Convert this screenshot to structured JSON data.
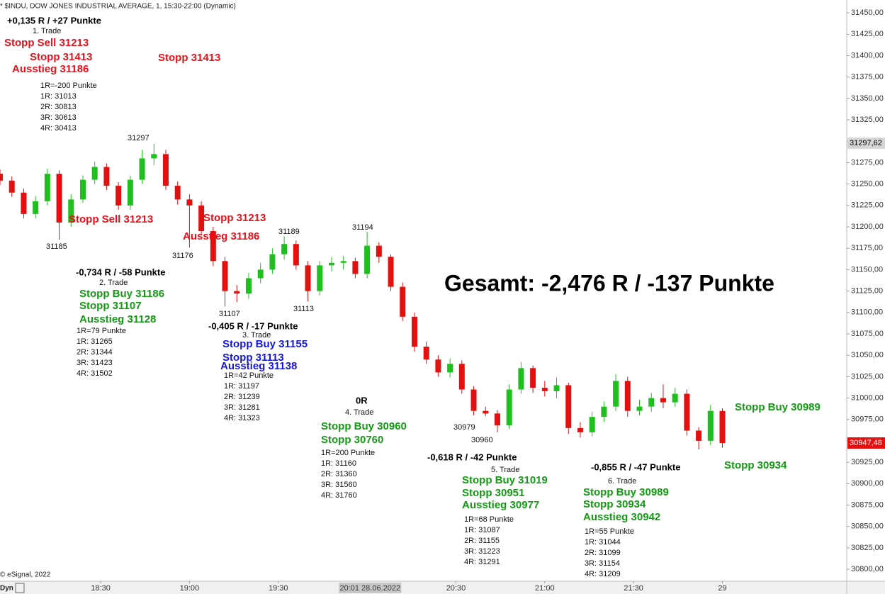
{
  "chart_data": {
    "type": "candlestick",
    "title": "* $INDU, DOW JONES INDUSTRIAL AVERAGE, 1, 15:30-22:00 (Dynamic)",
    "x": [
      1076,
      1080,
      1084,
      1088,
      1092,
      1096,
      1100,
      1104,
      1108,
      1112,
      1116,
      1120,
      1124,
      1128,
      1132,
      1136,
      1140,
      1144,
      1148,
      1152,
      1156,
      1160,
      1164,
      1168,
      1172,
      1176,
      1180,
      1184,
      1188,
      1192,
      1196,
      1200,
      1204,
      1208,
      1212,
      1216,
      1220,
      1224,
      1228,
      1232,
      1236,
      1240,
      1244,
      1248,
      1252,
      1256,
      1260,
      1264,
      1268,
      1272,
      1276,
      1280,
      1284,
      1288,
      1292,
      1296,
      1300,
      1304,
      1308,
      1312,
      1316,
      1320
    ],
    "open": [
      31262,
      31254,
      31240,
      31215,
      31230,
      31262,
      31205,
      31232,
      31255,
      31270,
      31248,
      31225,
      31255,
      31280,
      31285,
      31248,
      31232,
      31225,
      31195,
      31160,
      31125,
      31122,
      31140,
      31150,
      31168,
      31180,
      31155,
      31125,
      31155,
      31158,
      31160,
      31145,
      31178,
      31165,
      31130,
      31095,
      31060,
      31045,
      31030,
      31040,
      31010,
      30985,
      30982,
      30968,
      31010,
      31035,
      31012,
      31008,
      31015,
      30965,
      30960,
      30978,
      30990,
      31020,
      30985,
      30990,
      31000,
      30995,
      31005,
      30962,
      30950,
      30985
    ],
    "high": [
      31267,
      31259,
      31245,
      31236,
      31268,
      31266,
      31238,
      31260,
      31276,
      31274,
      31252,
      31260,
      31290,
      31297,
      31290,
      31253,
      31238,
      31230,
      31200,
      31165,
      31132,
      31146,
      31158,
      31175,
      31189,
      31184,
      31160,
      31160,
      31165,
      31166,
      31164,
      31194,
      31182,
      31168,
      31135,
      31100,
      31066,
      31050,
      31046,
      31044,
      31014,
      30990,
      30986,
      31016,
      31042,
      31038,
      31020,
      31024,
      31018,
      30972,
      30984,
      30996,
      31028,
      31025,
      30998,
      31006,
      31016,
      31012,
      31010,
      30966,
      30992,
      30988
    ],
    "low": [
      31249,
      31235,
      31210,
      31210,
      31225,
      31185,
      31200,
      31228,
      31250,
      31243,
      31220,
      31220,
      31250,
      31272,
      31243,
      31226,
      31176,
      31190,
      31154,
      31107,
      31112,
      31116,
      31134,
      31145,
      31162,
      31150,
      31113,
      31120,
      31148,
      31150,
      31140,
      31140,
      31158,
      31125,
      31090,
      31054,
      31040,
      31025,
      31024,
      31005,
      30980,
      30979,
      30960,
      30964,
      31005,
      31006,
      31002,
      31000,
      30958,
      30954,
      30955,
      30972,
      30985,
      30978,
      30980,
      30984,
      30988,
      30990,
      30956,
      30940,
      30945,
      30942
    ],
    "close": [
      31254,
      31240,
      31215,
      31230,
      31262,
      31205,
      31232,
      31255,
      31270,
      31248,
      31225,
      31255,
      31280,
      31285,
      31248,
      31232,
      31225,
      31195,
      31160,
      31125,
      31122,
      31140,
      31150,
      31168,
      31180,
      31155,
      31125,
      31155,
      31158,
      31160,
      31145,
      31178,
      31165,
      31130,
      31095,
      31060,
      31045,
      31030,
      31040,
      31010,
      30985,
      30982,
      30968,
      31010,
      31035,
      31012,
      31008,
      31015,
      30965,
      30960,
      30978,
      30990,
      31020,
      30985,
      30990,
      31000,
      30995,
      31005,
      30962,
      30950,
      30985,
      30947.48
    ],
    "up_color": "#1fbf1f",
    "down_color": "#e3100f",
    "xlim": [
      1076,
      1362
    ],
    "xticks": [
      {
        "value": 1110,
        "label": "18:30"
      },
      {
        "value": 1140,
        "label": "19:00"
      },
      {
        "value": 1170,
        "label": "19:30"
      },
      {
        "value": 1201,
        "label": "20:01 28.06.2022",
        "highlight": true
      },
      {
        "value": 1230,
        "label": "20:30"
      },
      {
        "value": 1260,
        "label": "21:00"
      },
      {
        "value": 1290,
        "label": "21:30"
      },
      {
        "value": 1320,
        "label": "29"
      }
    ],
    "ylim": [
      30786,
      31465
    ],
    "yticks": [
      {
        "value": 30800,
        "label": "30800,00"
      },
      {
        "value": 30825,
        "label": "30825,00"
      },
      {
        "value": 30850,
        "label": "30850,00"
      },
      {
        "value": 30875,
        "label": "30875,00"
      },
      {
        "value": 30900,
        "label": "30900,00"
      },
      {
        "value": 30925,
        "label": "30925,00"
      },
      {
        "value": 30950,
        "label": "30950,00"
      },
      {
        "value": 30975,
        "label": "30975,00"
      },
      {
        "value": 31000,
        "label": "31000,00"
      },
      {
        "value": 31025,
        "label": "31025,00"
      },
      {
        "value": 31050,
        "label": "31050,00"
      },
      {
        "value": 31075,
        "label": "31075,00"
      },
      {
        "value": 31100,
        "label": "31100,00"
      },
      {
        "value": 31125,
        "label": "31125,00"
      },
      {
        "value": 31150,
        "label": "31150,00"
      },
      {
        "value": 31175,
        "label": "31175,00"
      },
      {
        "value": 31200,
        "label": "31200,00"
      },
      {
        "value": 31225,
        "label": "31225,00"
      },
      {
        "value": 31250,
        "label": "31250,00"
      },
      {
        "value": 31275,
        "label": "31275,00"
      },
      {
        "value": 31300,
        "label": "31300,00"
      },
      {
        "value": 31325,
        "label": "31325,00"
      },
      {
        "value": 31350,
        "label": "31350,00"
      },
      {
        "value": 31375,
        "label": "31375,00"
      },
      {
        "value": 31400,
        "label": "31400,00"
      },
      {
        "value": 31425,
        "label": "31425,00"
      },
      {
        "value": 31450,
        "label": "31450,00"
      }
    ],
    "price_markers": [
      {
        "value": 31297.62,
        "label": "31297,62",
        "color": "#d6d6d6",
        "text_color": "#000"
      },
      {
        "value": 30947.48,
        "label": "30947,48",
        "color": "#e3100f",
        "text_color": "#fff"
      }
    ],
    "annotations": [
      {
        "text": "+0,135 R / +27 Punkte",
        "color": "#000"
      },
      {
        "text": "1. Trade",
        "color": "#111"
      },
      {
        "text": "Stopp Sell 31213",
        "color": "#e8101b"
      },
      {
        "text": "Stopp 31413",
        "color": "#e8101b"
      },
      {
        "text": "Ausstieg 31186",
        "color": "#e8101b"
      },
      {
        "text": "1R=-200 Punkte",
        "color": "#111"
      },
      {
        "text": "1R: 31013",
        "color": "#111"
      },
      {
        "text": "2R: 30813",
        "color": "#111"
      },
      {
        "text": "3R: 30613",
        "color": "#111"
      },
      {
        "text": "4R: 30413",
        "color": "#111"
      },
      {
        "text": "Stopp 31413",
        "color": "#e8101b"
      },
      {
        "text": "31297",
        "color": "#111"
      },
      {
        "text": "31185",
        "color": "#111"
      },
      {
        "text": "31176",
        "color": "#111"
      },
      {
        "text": "31189",
        "color": "#111"
      },
      {
        "text": "31194",
        "color": "#111"
      },
      {
        "text": "31107",
        "color": "#111"
      },
      {
        "text": "31113",
        "color": "#111"
      },
      {
        "text": "30979",
        "color": "#111"
      },
      {
        "text": "30960",
        "color": "#111"
      },
      {
        "text": "Stopp Sell 31213",
        "color": "#e8101b"
      },
      {
        "text": "Stopp 31213",
        "color": "#e8101b"
      },
      {
        "text": "Ausstieg 31186",
        "color": "#e8101b"
      },
      {
        "text": "-0,734 R / -58 Punkte",
        "color": "#000"
      },
      {
        "text": "2. Trade",
        "color": "#111"
      },
      {
        "text": "Stopp Buy 31186",
        "color": "#139a13"
      },
      {
        "text": "Stopp 31107",
        "color": "#139a13"
      },
      {
        "text": "Ausstieg 31128",
        "color": "#139a13"
      },
      {
        "text": "1R=79 Punkte",
        "color": "#111"
      },
      {
        "text": "1R: 31265",
        "color": "#111"
      },
      {
        "text": "2R: 31344",
        "color": "#111"
      },
      {
        "text": "3R: 31423",
        "color": "#111"
      },
      {
        "text": "4R: 31502",
        "color": "#111"
      },
      {
        "text": "-0,405 R / -17 Punkte",
        "color": "#000"
      },
      {
        "text": "3. Trade",
        "color": "#111"
      },
      {
        "text": "Stopp Buy 31155",
        "color": "#1515e0"
      },
      {
        "text": "Stopp 31113",
        "color": "#1515e0"
      },
      {
        "text": "Ausstieg 31138",
        "color": "#1515e0"
      },
      {
        "text": "1R=42 Punkte",
        "color": "#111"
      },
      {
        "text": "1R: 31197",
        "color": "#111"
      },
      {
        "text": "2R: 31239",
        "color": "#111"
      },
      {
        "text": "3R: 31281",
        "color": "#111"
      },
      {
        "text": "4R: 31323",
        "color": "#111"
      },
      {
        "text": "0R",
        "color": "#000"
      },
      {
        "text": "4. Trade",
        "color": "#111"
      },
      {
        "text": "Stopp Buy 30960",
        "color": "#139a13"
      },
      {
        "text": "Stopp 30760",
        "color": "#139a13"
      },
      {
        "text": "1R=200 Punkte",
        "color": "#111"
      },
      {
        "text": "1R: 31160",
        "color": "#111"
      },
      {
        "text": "2R: 31360",
        "color": "#111"
      },
      {
        "text": "3R: 31560",
        "color": "#111"
      },
      {
        "text": "4R: 31760",
        "color": "#111"
      },
      {
        "text": "-0,618 R / -42 Punkte",
        "color": "#000"
      },
      {
        "text": "5. Trade",
        "color": "#111"
      },
      {
        "text": "Stopp Buy 31019",
        "color": "#139a13"
      },
      {
        "text": "Stopp 30951",
        "color": "#139a13"
      },
      {
        "text": "Ausstieg 30977",
        "color": "#139a13"
      },
      {
        "text": "1R=68 Punkte",
        "color": "#111"
      },
      {
        "text": "1R: 31087",
        "color": "#111"
      },
      {
        "text": "2R: 31155",
        "color": "#111"
      },
      {
        "text": "3R: 31223",
        "color": "#111"
      },
      {
        "text": "4R: 31291",
        "color": "#111"
      },
      {
        "text": "-0,855 R / -47 Punkte",
        "color": "#000"
      },
      {
        "text": "6. Trade",
        "color": "#111"
      },
      {
        "text": "Stopp Buy 30989",
        "color": "#139a13"
      },
      {
        "text": "Stopp 30934",
        "color": "#139a13"
      },
      {
        "text": "Ausstieg 30942",
        "color": "#139a13"
      },
      {
        "text": "1R=55 Punkte",
        "color": "#111"
      },
      {
        "text": "1R: 31044",
        "color": "#111"
      },
      {
        "text": "2R: 31099",
        "color": "#111"
      },
      {
        "text": "3R: 31154",
        "color": "#111"
      },
      {
        "text": "4R: 31209",
        "color": "#111"
      },
      {
        "text": "Stopp Buy 30989",
        "color": "#139a13"
      },
      {
        "text": "Stopp 30934",
        "color": "#139a13"
      },
      {
        "text": "Gesamt: -2,476 R / -137 Punkte",
        "color": "#000"
      }
    ],
    "footer": "© eSignal, 2022",
    "mode_label": "Dyn"
  }
}
